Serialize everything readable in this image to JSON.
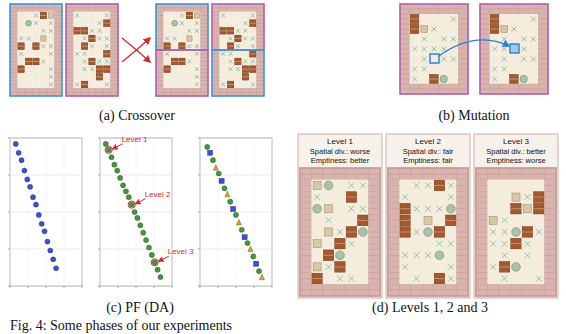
{
  "chart_data": [
    {
      "type": "scatter",
      "xlim": [
        0,
        1
      ],
      "ylim": [
        0,
        1
      ],
      "xticks": [
        0,
        0.25,
        0.5,
        0.75,
        1
      ],
      "yticks": [
        0,
        0.25,
        0.5,
        0.75,
        1
      ],
      "grid": true,
      "tick_labels": false,
      "series": [
        {
          "color": "#3a4fd8",
          "marker": "circle",
          "x": [
            0.08,
            0.12,
            0.16,
            0.2,
            0.24,
            0.28,
            0.32,
            0.36,
            0.4,
            0.44,
            0.48,
            0.52,
            0.56,
            0.6,
            0.64
          ],
          "values": [
            0.96,
            0.9,
            0.85,
            0.78,
            0.72,
            0.67,
            0.6,
            0.55,
            0.48,
            0.42,
            0.37,
            0.3,
            0.24,
            0.18,
            0.12
          ]
        }
      ]
    },
    {
      "type": "scatter",
      "xlim": [
        0,
        1
      ],
      "ylim": [
        0,
        1
      ],
      "xticks": [
        0,
        0.25,
        0.5,
        0.75,
        1
      ],
      "yticks": [
        0,
        0.25,
        0.5,
        0.75,
        1
      ],
      "grid": true,
      "tick_labels": false,
      "series": [
        {
          "color": "#3f9a3a",
          "marker": "circle",
          "x": [
            0.08,
            0.12,
            0.16,
            0.2,
            0.24,
            0.28,
            0.32,
            0.36,
            0.4,
            0.44,
            0.48,
            0.52,
            0.56,
            0.6,
            0.64,
            0.68,
            0.72,
            0.76,
            0.8,
            0.84
          ],
          "values": [
            0.96,
            0.92,
            0.87,
            0.82,
            0.78,
            0.73,
            0.68,
            0.64,
            0.6,
            0.55,
            0.5,
            0.46,
            0.41,
            0.36,
            0.31,
            0.26,
            0.21,
            0.16,
            0.11,
            0.06
          ]
        }
      ],
      "annotations": [
        {
          "text": "Level 1",
          "x": 0.12,
          "y": 0.92
        },
        {
          "text": "Level 2",
          "x": 0.44,
          "y": 0.55
        },
        {
          "text": "Level 3",
          "x": 0.76,
          "y": 0.16
        }
      ]
    },
    {
      "type": "scatter",
      "xlim": [
        0,
        1
      ],
      "ylim": [
        0,
        1
      ],
      "xticks": [
        0,
        0.25,
        0.5,
        0.75,
        1
      ],
      "yticks": [
        0,
        0.25,
        0.5,
        0.75,
        1
      ],
      "grid": true,
      "tick_labels": false,
      "series": [
        {
          "color": "#3f9a3a",
          "marker": "circle",
          "x": [
            0.1,
            0.18,
            0.26,
            0.34,
            0.42,
            0.5,
            0.58,
            0.66,
            0.74,
            0.82
          ],
          "values": [
            0.94,
            0.85,
            0.76,
            0.66,
            0.57,
            0.48,
            0.38,
            0.29,
            0.2,
            0.1
          ]
        },
        {
          "color": "#3a4fd8",
          "marker": "square",
          "x": [
            0.14,
            0.3,
            0.46,
            0.62,
            0.78
          ],
          "values": [
            0.9,
            0.71,
            0.52,
            0.33,
            0.15
          ]
        },
        {
          "color": "#e0a020",
          "marker": "triangle",
          "x": [
            0.22,
            0.38,
            0.54,
            0.7,
            0.86
          ],
          "values": [
            0.8,
            0.62,
            0.43,
            0.25,
            0.06
          ]
        }
      ]
    }
  ],
  "figure": {
    "panels": [
      {
        "caption": "(a) Crossover"
      },
      {
        "caption": "(b) Mutation"
      },
      {
        "caption": "(c) PF (DA)"
      },
      {
        "caption": "(d) Levels 1, 2 and 3",
        "levels": [
          {
            "title": "Level 1",
            "lines": [
              "Spatial div.: worse",
              "Emptiness: better"
            ]
          },
          {
            "title": "Level 2",
            "lines": [
              "Spatial div.: fair",
              "Emptiness: fair"
            ]
          },
          {
            "title": "Level 3",
            "lines": [
              "Spatial div.: better",
              "Emptiness: worse"
            ]
          }
        ]
      }
    ],
    "caption": "Fig. 4: Some phases of our experiments"
  }
}
